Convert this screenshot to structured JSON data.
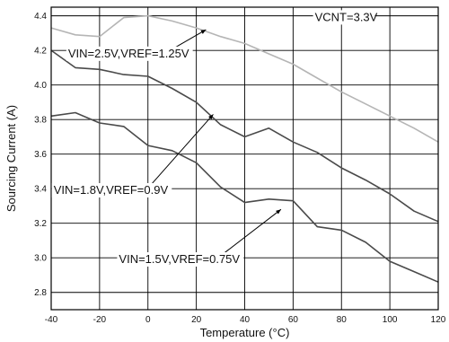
{
  "chart_data": {
    "type": "line",
    "title": "",
    "xlabel": "Temperature (°C)",
    "ylabel": "Sourcing Current (A)",
    "xlim": [
      -40,
      120
    ],
    "ylim": [
      2.7,
      4.45
    ],
    "grid": true,
    "x_ticks": [
      -40,
      -20,
      0,
      20,
      40,
      60,
      80,
      100,
      120
    ],
    "y_ticks": [
      2.8,
      3.0,
      3.2,
      3.4,
      3.6,
      3.8,
      4.0,
      4.2,
      4.4
    ],
    "x_tick_labels": [
      "-40",
      "-20",
      "0",
      "20",
      "40",
      "60",
      "80",
      "100",
      "120"
    ],
    "y_tick_labels": [
      "2.8",
      "3.0",
      "3.2",
      "3.4",
      "3.6",
      "3.8",
      "4.0",
      "4.2",
      "4.4"
    ],
    "series": [
      {
        "name": "VIN=2.5V,VREF=1.25V",
        "color": "#b5b5b5",
        "x": [
          -40,
          -30,
          -20,
          -10,
          0,
          10,
          20,
          30,
          40,
          50,
          60,
          70,
          80,
          90,
          100,
          110,
          120
        ],
        "y": [
          4.33,
          4.29,
          4.28,
          4.39,
          4.4,
          4.37,
          4.33,
          4.28,
          4.24,
          4.18,
          4.12,
          4.04,
          3.96,
          3.89,
          3.82,
          3.75,
          3.67
        ]
      },
      {
        "name": "VIN=1.8V,VREF=0.9V",
        "color": "#4a4a4a",
        "x": [
          -40,
          -30,
          -20,
          -10,
          0,
          10,
          20,
          30,
          40,
          50,
          60,
          70,
          80,
          90,
          100,
          110,
          120
        ],
        "y": [
          4.2,
          4.1,
          4.09,
          4.06,
          4.05,
          3.98,
          3.9,
          3.77,
          3.7,
          3.75,
          3.67,
          3.61,
          3.52,
          3.45,
          3.37,
          3.27,
          3.21
        ]
      },
      {
        "name": "VIN=1.5V,VREF=0.75V",
        "color": "#4a4a4a",
        "x": [
          -40,
          -30,
          -20,
          -10,
          0,
          10,
          20,
          30,
          40,
          50,
          60,
          70,
          80,
          90,
          100,
          110,
          120
        ],
        "y": [
          3.82,
          3.84,
          3.78,
          3.76,
          3.65,
          3.62,
          3.55,
          3.41,
          3.32,
          3.34,
          3.33,
          3.18,
          3.16,
          3.09,
          2.98,
          2.92,
          2.86
        ]
      }
    ],
    "annotations": [
      {
        "text": "VCNT=3.3V",
        "x": 69,
        "y": 4.37,
        "arrow_to": null
      },
      {
        "text": "VIN=2.5V,VREF=1.25V",
        "x": -33,
        "y": 4.16,
        "arrow_to": [
          24,
          4.32
        ]
      },
      {
        "text": "VIN=1.8V,VREF=0.9V",
        "x": -39,
        "y": 3.37,
        "arrow_to": [
          27,
          3.83
        ]
      },
      {
        "text": "VIN=1.5V,VREF=0.75V",
        "x": -12,
        "y": 2.97,
        "arrow_to": [
          55,
          3.28
        ]
      }
    ]
  }
}
